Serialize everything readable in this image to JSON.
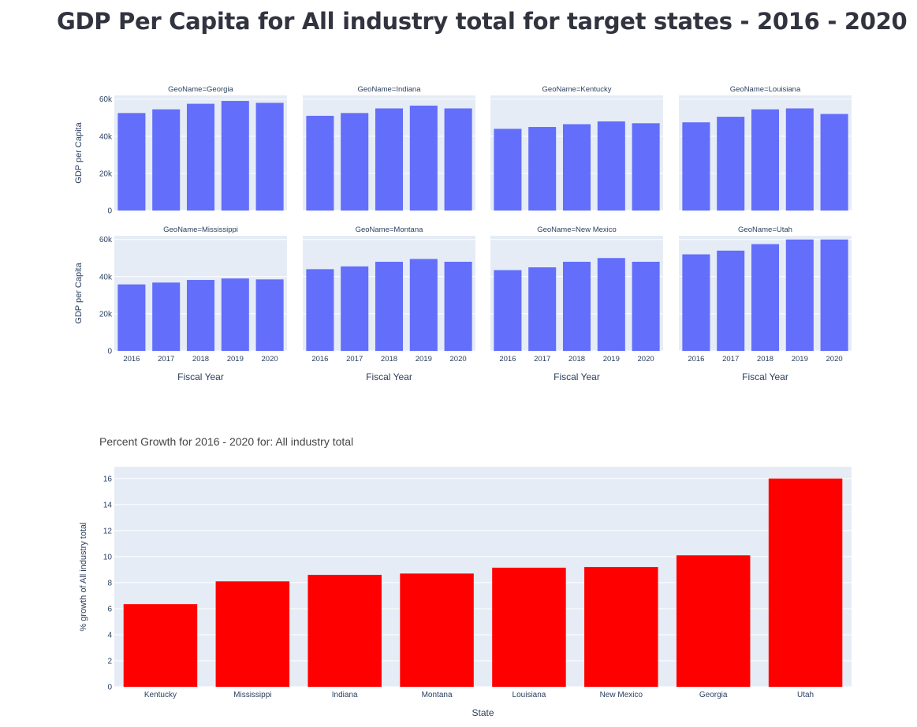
{
  "page": {
    "title": "GDP Per Capita for All industry total for target states - 2016 - 2020"
  },
  "colors": {
    "facet_bar": "#636efa",
    "growth_bar": "#ff0000",
    "plot_bg": "#e5ecf6",
    "grid": "#ffffff",
    "text": "#2a3f5f"
  },
  "chart_data": [
    {
      "type": "bar",
      "subtype": "faceted",
      "ylabel": "GDP per Capita",
      "xlabel": "Fiscal Year",
      "categories": [
        "2016",
        "2017",
        "2018",
        "2019",
        "2020"
      ],
      "ylim": [
        0,
        62000
      ],
      "yticks": [
        0,
        20000,
        40000,
        60000
      ],
      "ytick_labels": [
        "0",
        "20k",
        "40k",
        "60k"
      ],
      "facet_rows": 2,
      "facet_cols": 4,
      "series": [
        {
          "name": "GeoName=Georgia",
          "values": [
            52500,
            54500,
            57500,
            59000,
            58000
          ]
        },
        {
          "name": "GeoName=Indiana",
          "values": [
            51000,
            52500,
            55000,
            56500,
            55000
          ]
        },
        {
          "name": "GeoName=Kentucky",
          "values": [
            44000,
            45000,
            46500,
            48000,
            47000
          ]
        },
        {
          "name": "GeoName=Louisiana",
          "values": [
            47500,
            50500,
            54500,
            55000,
            52000
          ]
        },
        {
          "name": "GeoName=Mississippi",
          "values": [
            35800,
            36800,
            38200,
            39000,
            38500
          ]
        },
        {
          "name": "GeoName=Montana",
          "values": [
            44000,
            45500,
            48000,
            49500,
            48000
          ]
        },
        {
          "name": "GeoName=New Mexico",
          "values": [
            43500,
            45000,
            48000,
            50000,
            48000
          ]
        },
        {
          "name": "GeoName=Utah",
          "values": [
            52000,
            54000,
            57500,
            60000,
            60000
          ]
        }
      ]
    },
    {
      "type": "bar",
      "title": "Percent Growth for 2016 - 2020 for: All industry total",
      "xlabel": "State",
      "ylabel": "% growth of All industry total",
      "categories": [
        "Kentucky",
        "Mississippi",
        "Indiana",
        "Montana",
        "Louisiana",
        "New Mexico",
        "Georgia",
        "Utah"
      ],
      "values": [
        6.35,
        8.1,
        8.6,
        8.7,
        9.15,
        9.2,
        10.1,
        16.0
      ],
      "ylim": [
        0,
        16.9
      ],
      "yticks": [
        0,
        2,
        4,
        6,
        8,
        10,
        12,
        14,
        16
      ],
      "ytick_labels": [
        "0",
        "2",
        "4",
        "6",
        "8",
        "10",
        "12",
        "14",
        "16"
      ]
    }
  ]
}
